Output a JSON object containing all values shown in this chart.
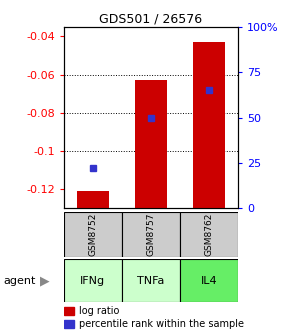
{
  "title": "GDS501 / 26576",
  "categories": [
    "GSM8752",
    "GSM8757",
    "GSM8762"
  ],
  "agents": [
    "IFNg",
    "TNFa",
    "IL4"
  ],
  "log_ratios": [
    -0.121,
    -0.063,
    -0.043
  ],
  "percentile_ranks_pct": [
    22,
    50,
    65
  ],
  "ylim": [
    -0.13,
    -0.035
  ],
  "yticks_left": [
    -0.12,
    -0.1,
    -0.08,
    -0.06,
    -0.04
  ],
  "yticks_right_pct": [
    0,
    25,
    50,
    75,
    100
  ],
  "bar_color": "#cc0000",
  "dot_color": "#3333cc",
  "agent_colors": [
    "#ccffcc",
    "#ccffcc",
    "#66ee66"
  ],
  "gsm_bg_color": "#cccccc",
  "bar_width": 0.55
}
